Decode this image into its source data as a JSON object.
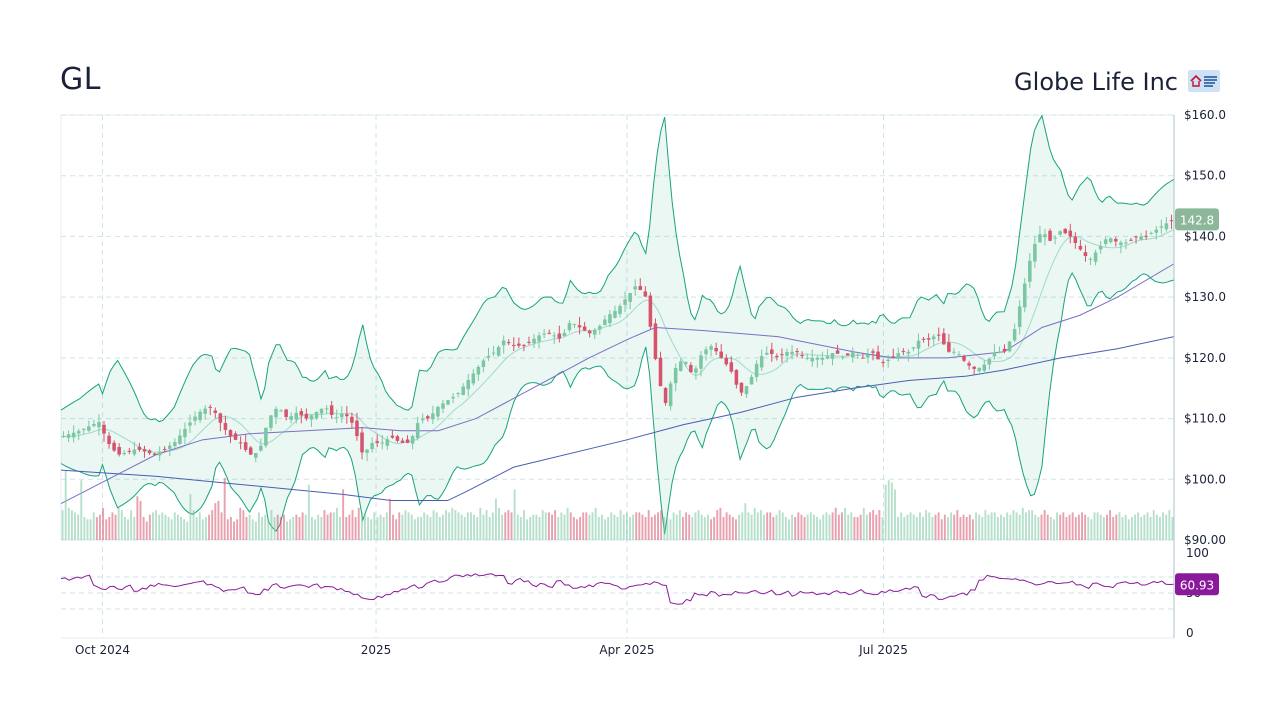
{
  "header": {
    "ticker": "GL",
    "company": "Globe Life Inc",
    "logo_icon": "globe-life-logo"
  },
  "colors": {
    "up": "#7cc7a3",
    "down": "#d6536b",
    "band": "#19a27e",
    "ma_fast": "#7b6fc4",
    "ma_slow": "#4a5db3",
    "rsi": "#8b1a9a",
    "price_tag": "#8db79b",
    "rsi_tag": "#8b1a9a",
    "grid": "#cfe3ea"
  },
  "chart_data": [
    {
      "type": "candlestick",
      "title": "GL",
      "x_tick_labels": [
        "Oct 2024",
        "2025",
        "Apr 2025",
        "Jul 2025"
      ],
      "y_tick_labels": [
        "$160.0",
        "$150.0",
        "$140.0",
        "$130.0",
        "$120.0",
        "$110.0",
        "$100.0",
        "$90.00"
      ],
      "ylim": [
        90,
        160
      ],
      "last_price_label": "142.8",
      "grid": true,
      "series": [
        {
          "name": "close",
          "points": [
            [
              0,
              107
            ],
            [
              10,
              108
            ],
            [
              20,
              109.5
            ],
            [
              25,
              106
            ],
            [
              30,
              104
            ],
            [
              40,
              105
            ],
            [
              50,
              104
            ],
            [
              55,
              105
            ],
            [
              60,
              106
            ],
            [
              65,
              108
            ],
            [
              70,
              110
            ],
            [
              75,
              111.5
            ],
            [
              80,
              112
            ],
            [
              85,
              109
            ],
            [
              90,
              107
            ],
            [
              95,
              106
            ],
            [
              100,
              104
            ],
            [
              105,
              104.5
            ],
            [
              110,
              110
            ],
            [
              115,
              112
            ],
            [
              120,
              110
            ],
            [
              125,
              111
            ],
            [
              130,
              110
            ],
            [
              135,
              111
            ],
            [
              140,
              112
            ],
            [
              145,
              110
            ],
            [
              150,
              111
            ],
            [
              155,
              109
            ],
            [
              160,
              104
            ],
            [
              165,
              106
            ],
            [
              170,
              106
            ],
            [
              175,
              107
            ],
            [
              180,
              106
            ],
            [
              185,
              106
            ],
            [
              190,
              110
            ],
            [
              195,
              110
            ],
            [
              200,
              112
            ],
            [
              205,
              113
            ],
            [
              210,
              114
            ],
            [
              215,
              116
            ],
            [
              220,
              118
            ],
            [
              225,
              120
            ],
            [
              230,
              121
            ],
            [
              235,
              123
            ],
            [
              240,
              122
            ],
            [
              245,
              122
            ],
            [
              250,
              123
            ],
            [
              255,
              124
            ],
            [
              260,
              124
            ],
            [
              265,
              123
            ],
            [
              270,
              126
            ],
            [
              275,
              125
            ],
            [
              280,
              124
            ],
            [
              285,
              125
            ],
            [
              290,
              127
            ],
            [
              295,
              128
            ],
            [
              300,
              130
            ],
            [
              305,
              132
            ],
            [
              310,
              130
            ],
            [
              315,
              120
            ],
            [
              318,
              115
            ],
            [
              320,
              112
            ],
            [
              325,
              118
            ],
            [
              330,
              120
            ],
            [
              335,
              117
            ],
            [
              340,
              121
            ],
            [
              345,
              122
            ],
            [
              350,
              120
            ],
            [
              355,
              118
            ],
            [
              360,
              114
            ],
            [
              365,
              116
            ],
            [
              370,
              120
            ],
            [
              375,
              121
            ],
            [
              380,
              120
            ],
            [
              385,
              121
            ],
            [
              390,
              121
            ],
            [
              395,
              120
            ],
            [
              400,
              120
            ],
            [
              405,
              120
            ],
            [
              410,
              121
            ],
            [
              415,
              120
            ],
            [
              420,
              121
            ],
            [
              425,
              120
            ],
            [
              430,
              121
            ],
            [
              435,
              119
            ],
            [
              440,
              120
            ],
            [
              445,
              121
            ],
            [
              450,
              121
            ],
            [
              455,
              123
            ],
            [
              460,
              123
            ],
            [
              465,
              124
            ],
            [
              470,
              121
            ],
            [
              475,
              121
            ],
            [
              480,
              119
            ],
            [
              485,
              118
            ],
            [
              490,
              119
            ],
            [
              495,
              121
            ],
            [
              500,
              121
            ],
            [
              505,
              124
            ],
            [
              510,
              131
            ],
            [
              515,
              138
            ],
            [
              520,
              141
            ],
            [
              525,
              139
            ],
            [
              530,
              141
            ],
            [
              535,
              140
            ],
            [
              540,
              138
            ],
            [
              545,
              136
            ],
            [
              550,
              138
            ],
            [
              555,
              140
            ],
            [
              560,
              139
            ],
            [
              565,
              139
            ],
            [
              570,
              140
            ],
            [
              575,
              140
            ],
            [
              580,
              141
            ],
            [
              585,
              142
            ],
            [
              590,
              142.8
            ]
          ]
        },
        {
          "name": "",
          "points": [
            [
              0,
              101.5
            ],
            [
              50,
              100.5
            ],
            [
              100,
              99
            ],
            [
              150,
              97.5
            ],
            [
              175,
              96.5
            ],
            [
              205,
              96.5
            ],
            [
              215,
              98
            ],
            [
              240,
              102
            ],
            [
              300,
              106.5
            ],
            [
              330,
              109
            ],
            [
              360,
              111
            ],
            [
              390,
              113.5
            ],
            [
              420,
              115
            ],
            [
              450,
              116.3
            ],
            [
              480,
              117
            ],
            [
              500,
              118
            ],
            [
              530,
              120
            ],
            [
              560,
              121.5
            ],
            [
              590,
              123.5
            ]
          ]
        },
        {
          "name": "",
          "points": [
            [
              0,
              96
            ],
            [
              25,
              100
            ],
            [
              50,
              104
            ],
            [
              75,
              106.5
            ],
            [
              100,
              107.5
            ],
            [
              130,
              108
            ],
            [
              160,
              108.5
            ],
            [
              180,
              108
            ],
            [
              200,
              108
            ],
            [
              220,
              110
            ],
            [
              250,
              115
            ],
            [
              280,
              120
            ],
            [
              300,
              123
            ],
            [
              315,
              125
            ],
            [
              340,
              124.5
            ],
            [
              380,
              123.5
            ],
            [
              420,
              121
            ],
            [
              440,
              120
            ],
            [
              470,
              120
            ],
            [
              500,
              121
            ],
            [
              520,
              125
            ],
            [
              540,
              127
            ],
            [
              560,
              130
            ],
            [
              590,
              135.5
            ]
          ]
        }
      ]
    },
    {
      "type": "bar",
      "title": "",
      "series": [
        {
          "name": "volume",
          "values": [
            13,
            30,
            14,
            13,
            12,
            11,
            26,
            10,
            9,
            9,
            12,
            10,
            11,
            14,
            9,
            10,
            12,
            11,
            14,
            13,
            10,
            9,
            13,
            10,
            19,
            17,
            10,
            8,
            11,
            12,
            13,
            11,
            12,
            11,
            10,
            9,
            12,
            11,
            10,
            9,
            8,
            20,
            13,
            10,
            12,
            9,
            10,
            11,
            13,
            16,
            17,
            12,
            27,
            9,
            10,
            8,
            9,
            14,
            13,
            10,
            11,
            9,
            8,
            12,
            10,
            11,
            9,
            13,
            10,
            11,
            10,
            11,
            8,
            9,
            10,
            11,
            10,
            12,
            11,
            24,
            10,
            9,
            11,
            10,
            13,
            11,
            12,
            12,
            14,
            10,
            22,
            10,
            11,
            13,
            10,
            14,
            12,
            11,
            10,
            9,
            12,
            10,
            11,
            10,
            12,
            18,
            11,
            9,
            12,
            11,
            13,
            12,
            11,
            9,
            10,
            10,
            12,
            11,
            10,
            13,
            12,
            10,
            11,
            13,
            12,
            14,
            13,
            12,
            11,
            10,
            12,
            12,
            11,
            10,
            14,
            11,
            13,
            10,
            12,
            18,
            14,
            11,
            12,
            13,
            12,
            22,
            11,
            10,
            13,
            9,
            10,
            11,
            11,
            10,
            13,
            12,
            12,
            11,
            13,
            10,
            12,
            11,
            14,
            12,
            10,
            9,
            10,
            12,
            12,
            11,
            12,
            14,
            10,
            11,
            9,
            10,
            12,
            11,
            10,
            13,
            11,
            12,
            10,
            11,
            12,
            12,
            11,
            10,
            13,
            10,
            11,
            12,
            13,
            10,
            11,
            9,
            12,
            11,
            13,
            10,
            12,
            11,
            10,
            12,
            13,
            11,
            10,
            11,
            9,
            10,
            13,
            14,
            10,
            12,
            11,
            10,
            9,
            11,
            12,
            16,
            12,
            11,
            14,
            12,
            13,
            11,
            12,
            12,
            10,
            11,
            13,
            12,
            10,
            9,
            11,
            10,
            12,
            11,
            10,
            11,
            12,
            11,
            10,
            9,
            11,
            12,
            11,
            12,
            14,
            11,
            12,
            14,
            11,
            12,
            10,
            10,
            11,
            14,
            11,
            12,
            13,
            11,
            13,
            10,
            24,
            26,
            25,
            22,
            10,
            12,
            10,
            11,
            12,
            11,
            10,
            12,
            10,
            13,
            12,
            10,
            11,
            12,
            9,
            11,
            10,
            12,
            11,
            13,
            10,
            11,
            10,
            11,
            9,
            12,
            11,
            10,
            13,
            11,
            12,
            12,
            10,
            11,
            10,
            12,
            11,
            13,
            12,
            11,
            14,
            12,
            13,
            13,
            11,
            10,
            11,
            13,
            11,
            10,
            9,
            12,
            11,
            12,
            10,
            11,
            12,
            10,
            11,
            12,
            11,
            10,
            9,
            12,
            12,
            11,
            10,
            11,
            13,
            10,
            11,
            12,
            10,
            11,
            9,
            10,
            11,
            12,
            10,
            11,
            12,
            10,
            13,
            11,
            10,
            12,
            11,
            13,
            10
          ]
        }
      ]
    },
    {
      "type": "line",
      "title": "",
      "y_tick_labels": [
        "100",
        "50",
        "0"
      ],
      "ylim": [
        0,
        100
      ],
      "last_value_label": "60.93",
      "series": [
        {
          "name": "RSI",
          "values": [
            68,
            66,
            70,
            71,
            60,
            55,
            58,
            55,
            58,
            52,
            56,
            60,
            62,
            60,
            58,
            60,
            62,
            64,
            60,
            58,
            52,
            54,
            56,
            50,
            48,
            55,
            60,
            57,
            58,
            60,
            59,
            60,
            56,
            58,
            54,
            52,
            48,
            44,
            42,
            46,
            48,
            52,
            55,
            58,
            56,
            62,
            66,
            64,
            70,
            72,
            73,
            74,
            72,
            74,
            72,
            62,
            66,
            64,
            60,
            62,
            58,
            65,
            60,
            56,
            58,
            60,
            62,
            62,
            60,
            55,
            58,
            60,
            62,
            64,
            60,
            38,
            36,
            42,
            50,
            48,
            52,
            46,
            48,
            52,
            50,
            52,
            50,
            51,
            48,
            50,
            46,
            52,
            50,
            48,
            50,
            51,
            50,
            48,
            52,
            50,
            48,
            52,
            54,
            52,
            56,
            58,
            46,
            48,
            42,
            44,
            46,
            50,
            54,
            66,
            72,
            70,
            68,
            67,
            66,
            64,
            60,
            62,
            64,
            62,
            63,
            60,
            58,
            62,
            60,
            58,
            62,
            64,
            62,
            60,
            62,
            63,
            61,
            60.93
          ]
        }
      ]
    }
  ]
}
